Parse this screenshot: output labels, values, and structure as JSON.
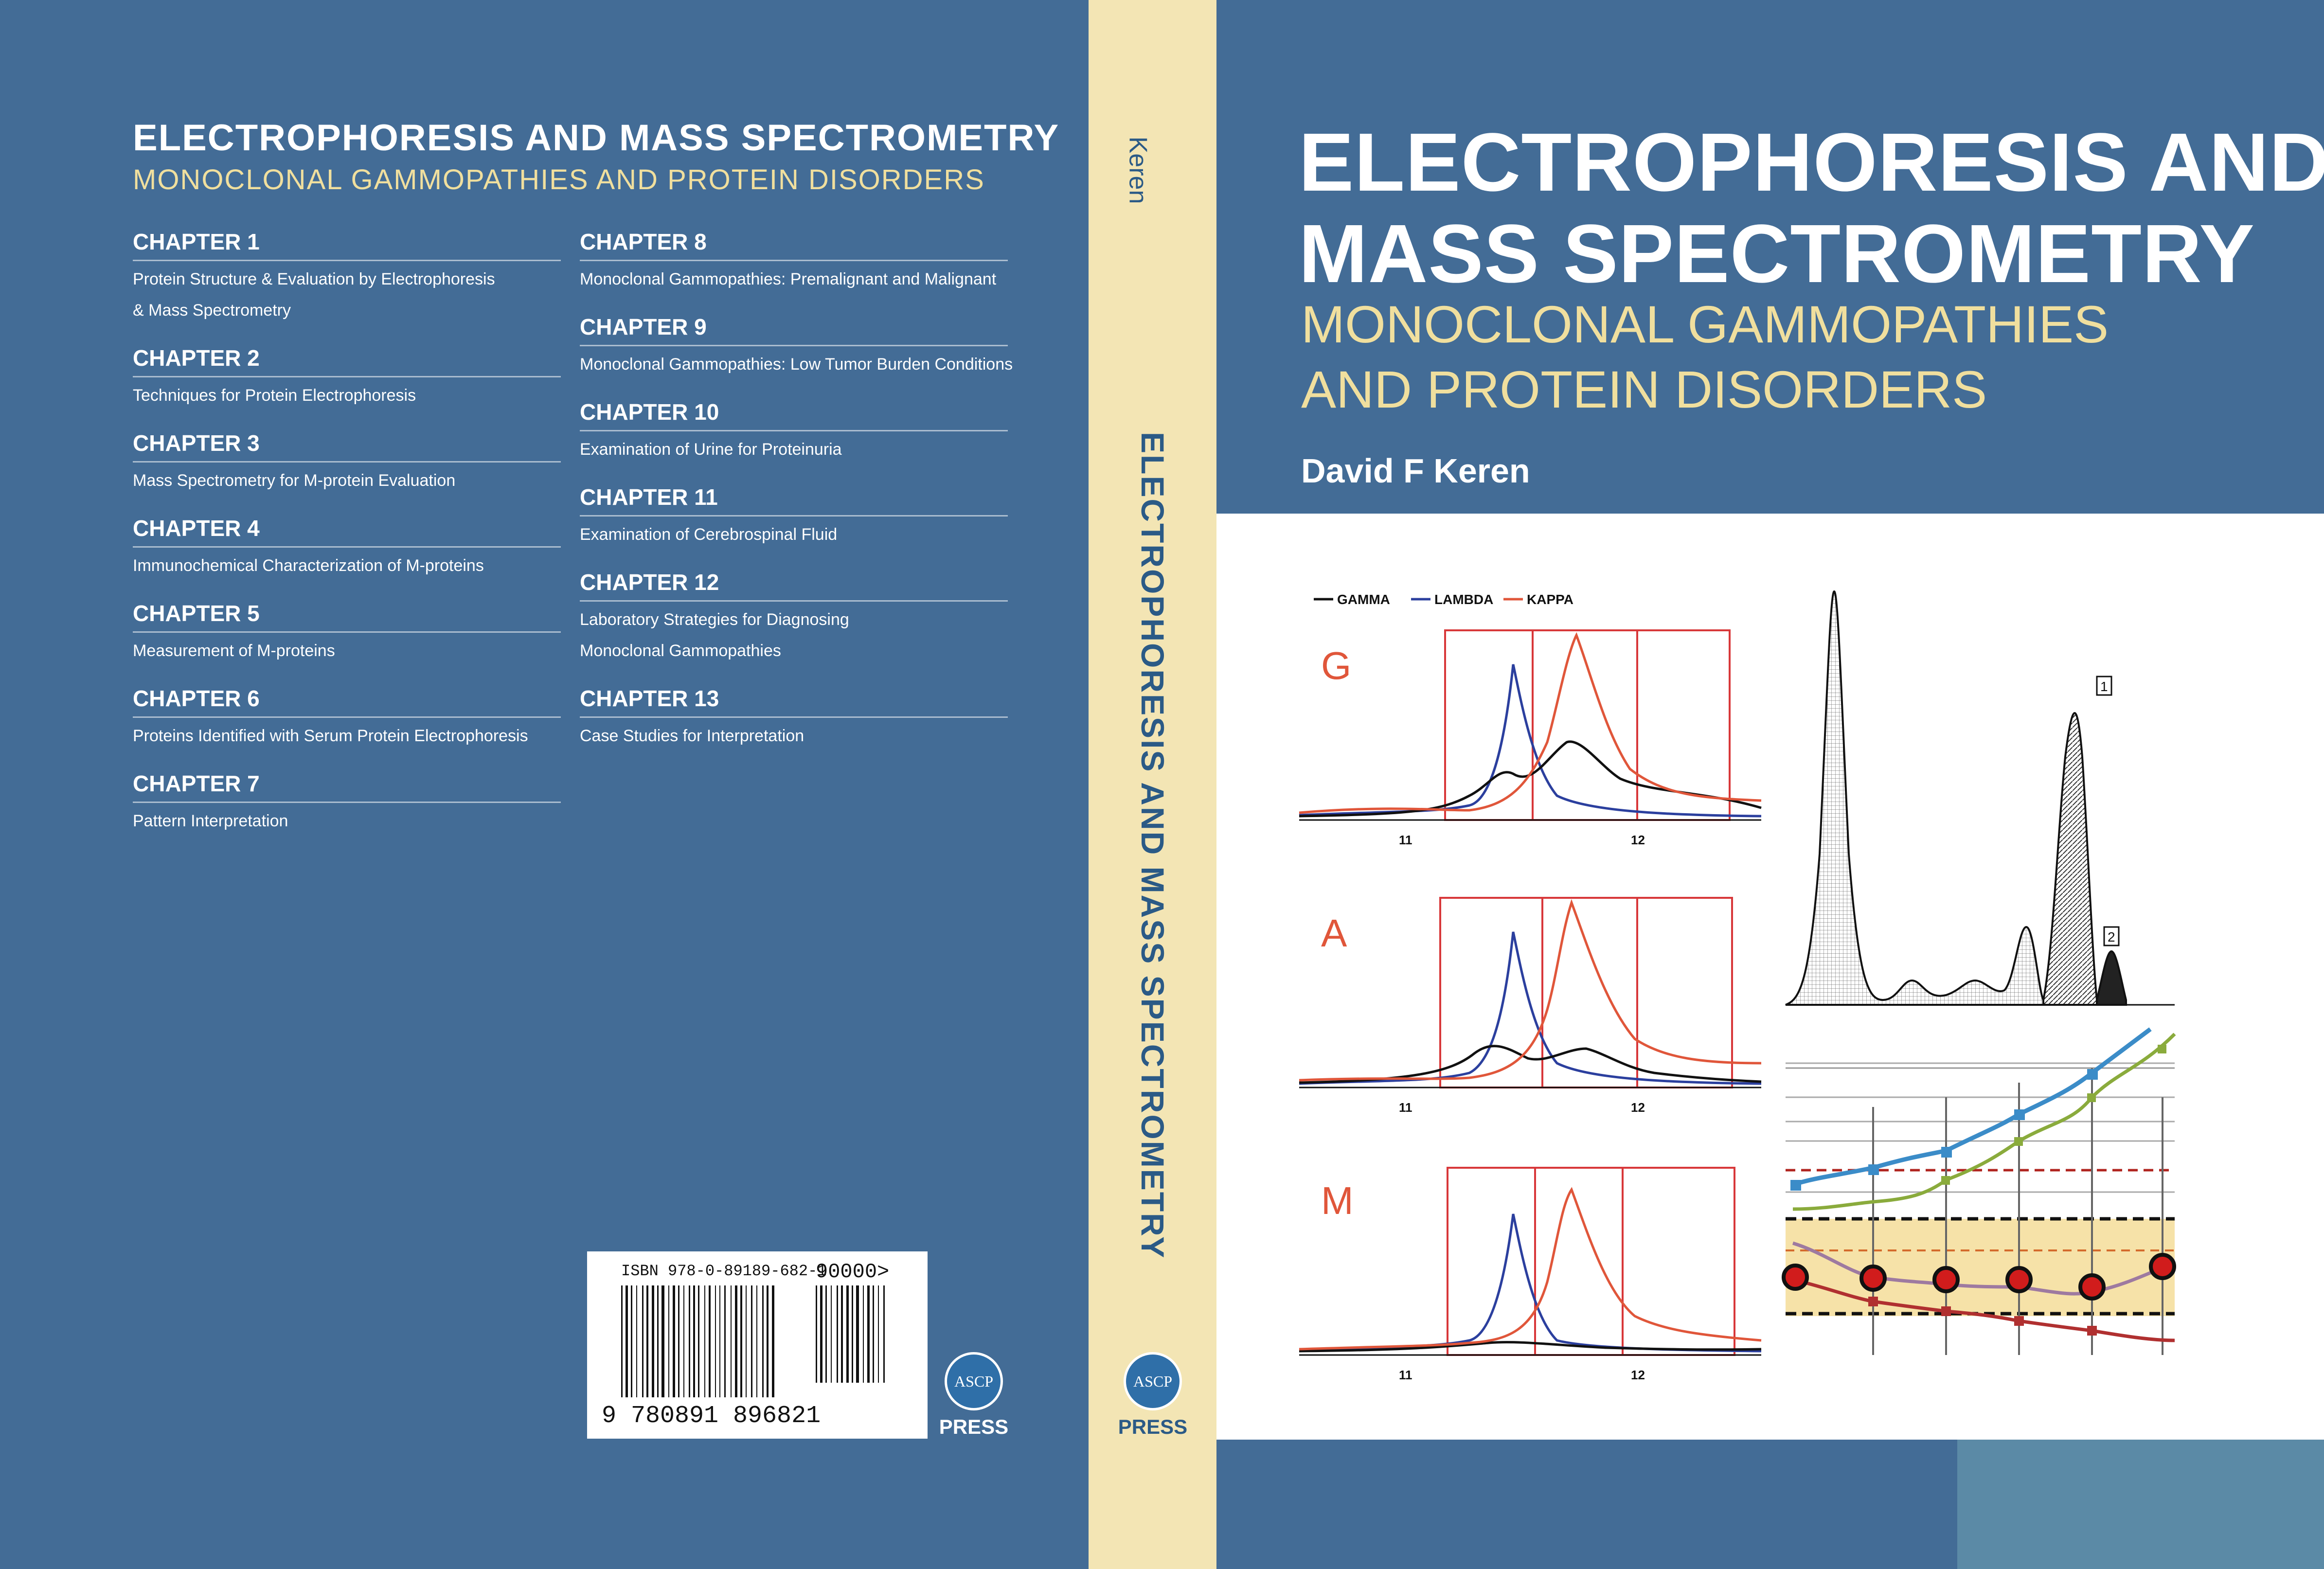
{
  "back": {
    "title": "ELECTROPHORESIS AND MASS SPECTROMETRY",
    "subtitle": "MONOCLONAL GAMMOPATHIES AND PROTEIN DISORDERS",
    "chapters_left": [
      {
        "head": "CHAPTER 1",
        "desc": [
          "Protein Structure & Evaluation by Electrophoresis",
          "& Mass Spectrometry"
        ]
      },
      {
        "head": "CHAPTER 2",
        "desc": [
          "Techniques for Protein Electrophoresis"
        ]
      },
      {
        "head": "CHAPTER 3",
        "desc": [
          "Mass Spectrometry for M-protein Evaluation"
        ]
      },
      {
        "head": "CHAPTER 4",
        "desc": [
          "Immunochemical Characterization of M-proteins"
        ]
      },
      {
        "head": "CHAPTER 5",
        "desc": [
          "Measurement of M-proteins"
        ]
      },
      {
        "head": "CHAPTER 6",
        "desc": [
          "Proteins Identified with Serum Protein Electrophoresis"
        ]
      },
      {
        "head": "CHAPTER 7",
        "desc": [
          "Pattern Interpretation"
        ]
      }
    ],
    "chapters_right": [
      {
        "head": "CHAPTER 8",
        "desc": [
          "Monoclonal Gammopathies: Premalignant and Malignant"
        ]
      },
      {
        "head": "CHAPTER 9",
        "desc": [
          "Monoclonal Gammopathies: Low Tumor Burden Conditions"
        ]
      },
      {
        "head": "CHAPTER 10",
        "desc": [
          "Examination of Urine for Proteinuria"
        ]
      },
      {
        "head": "CHAPTER 11",
        "desc": [
          "Examination of Cerebrospinal Fluid"
        ]
      },
      {
        "head": "CHAPTER 12",
        "desc": [
          "Laboratory Strategies for Diagnosing",
          "Monoclonal Gammopathies"
        ]
      },
      {
        "head": "CHAPTER 13",
        "desc": [
          "Case Studies for Interpretation"
        ]
      }
    ],
    "barcode": {
      "isbn_text": "ISBN 978-0-89189-682-1",
      "addon": "90000>",
      "number": "9 780891 896821"
    }
  },
  "publisher": {
    "logo_text": "ASCP",
    "name": "PRESS"
  },
  "spine": {
    "author": "Keren",
    "title": "ELECTROPHORESIS AND MASS SPECTROMETRY"
  },
  "front": {
    "title_line1": "ELECTROPHORESIS AND",
    "title_line2": "MASS SPECTROMETRY",
    "subtitle_line1": "MONOCLONAL GAMMOPATHIES",
    "subtitle_line2": "AND PROTEIN DISORDERS",
    "author": "David F Keren"
  },
  "figure": {
    "legend": [
      "GAMMA",
      "LAMBDA",
      "KAPPA"
    ],
    "panel_labels": [
      "G",
      "A",
      "M"
    ],
    "x_ticks": [
      "11",
      "12"
    ],
    "peak_labels": [
      "1",
      "2"
    ],
    "colors": {
      "gamma": "#111111",
      "lambda": "#2b3f9e",
      "kappa": "#e0563a",
      "box": "#d8383a"
    }
  },
  "colors": {
    "back": "#436c96",
    "spine": "#f3e5b4",
    "accent": "#f0df9e"
  }
}
